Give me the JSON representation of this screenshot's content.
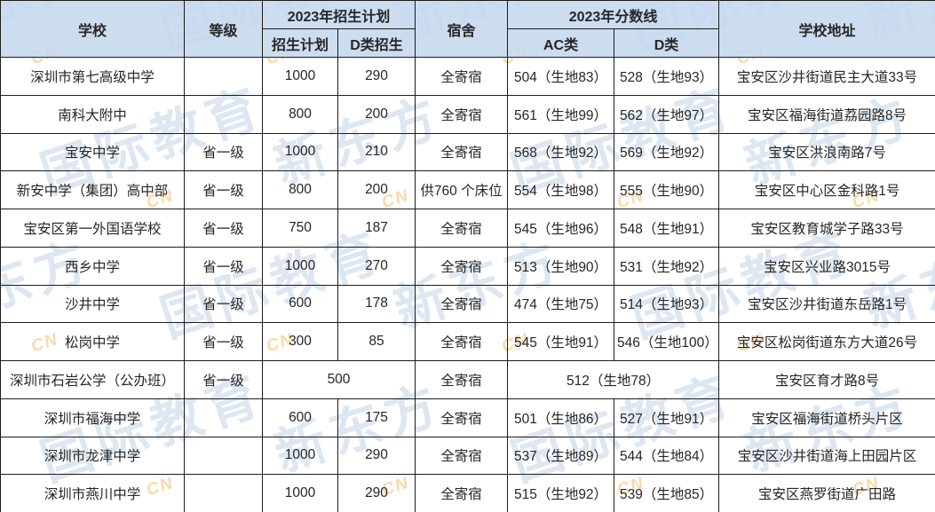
{
  "colors": {
    "header_bg": "#c5d8ee",
    "border": "#1c1c1c",
    "text": "#262626",
    "watermark_blue": "#7da2cd",
    "watermark_orange": "#f0a830"
  },
  "watermark": {
    "primary": "新东方",
    "secondary": "国际教育",
    "accent": "CN"
  },
  "table": {
    "headers": {
      "school": "学校",
      "level": "等级",
      "plan_group": "2023年招生计划",
      "plan": "招生计划",
      "d_plan": "D类招生",
      "dorm": "宿舍",
      "score_group": "2023年分数线",
      "ac": "AC类",
      "d": "D类",
      "address": "学校地址"
    },
    "rows": [
      {
        "school": "深圳市第七高级中学",
        "level": "",
        "plan": "1000",
        "d_plan": "290",
        "dorm": "全寄宿",
        "ac": "504（生地83）",
        "d": "528（生地93）",
        "address": "宝安区沙井街道民主大道33号"
      },
      {
        "school": "南科大附中",
        "level": "",
        "plan": "800",
        "d_plan": "200",
        "dorm": "全寄宿",
        "ac": "561（生地99）",
        "d": "562（生地97）",
        "address": "宝安区福海街道荔园路8号"
      },
      {
        "school": "宝安中学",
        "level": "省一级",
        "plan": "1000",
        "d_plan": "210",
        "dorm": "全寄宿",
        "ac": "568（生地92）",
        "d": "569（生地92）",
        "address": "宝安区洪浪南路7号"
      },
      {
        "school": "新安中学（集团）高中部",
        "level": "省一级",
        "plan": "800",
        "d_plan": "200",
        "dorm": "供760 个床位",
        "ac": "554（生地98）",
        "d": "555（生地90）",
        "address": "宝安区中心区金科路1号"
      },
      {
        "school": "宝安区第一外国语学校",
        "level": "省一级",
        "plan": "750",
        "d_plan": "187",
        "dorm": "全寄宿",
        "ac": "545（生地96）",
        "d": "548（生地91）",
        "address": "宝安区教育城学子路33号"
      },
      {
        "school": "西乡中学",
        "level": "省一级",
        "plan": "1000",
        "d_plan": "270",
        "dorm": "全寄宿",
        "ac": "513（生地90）",
        "d": "531（生地92）",
        "address": "宝安区兴业路3015号"
      },
      {
        "school": "沙井中学",
        "level": "省一级",
        "plan": "600",
        "d_plan": "178",
        "dorm": "全寄宿",
        "ac": "474（生地75）",
        "d": "514（生地93）",
        "address": "宝安区沙井街道东岳路1号"
      },
      {
        "school": "松岗中学",
        "level": "省一级",
        "plan": "300",
        "d_plan": "85",
        "dorm": "全寄宿",
        "ac": "545（生地91）",
        "d": "546（生地100）",
        "address": "宝安区松岗街道东方大道26号"
      },
      {
        "school": "深圳市石岩公学（公办班）",
        "level": "省一级",
        "plan": "500",
        "plan_colspan": 2,
        "dorm": "全寄宿",
        "ac": "512（生地78）",
        "score_colspan": 2,
        "address": "宝安区育才路8号"
      },
      {
        "school": "深圳市福海中学",
        "level": "",
        "plan": "600",
        "d_plan": "175",
        "dorm": "全寄宿",
        "ac": "501（生地86）",
        "d": "527（生地91）",
        "address": "宝安区福海街道桥头片区"
      },
      {
        "school": "深圳市龙津中学",
        "level": "",
        "plan": "1000",
        "d_plan": "290",
        "dorm": "全寄宿",
        "ac": "537（生地89）",
        "d": "544（生地84）",
        "address": "宝安区沙井街道海上田园片区"
      },
      {
        "school": "深圳市燕川中学",
        "level": "",
        "plan": "1000",
        "d_plan": "290",
        "dorm": "全寄宿",
        "ac": "515（生地92）",
        "d": "539（生地85）",
        "address": "宝安区燕罗街道广田路"
      }
    ]
  }
}
